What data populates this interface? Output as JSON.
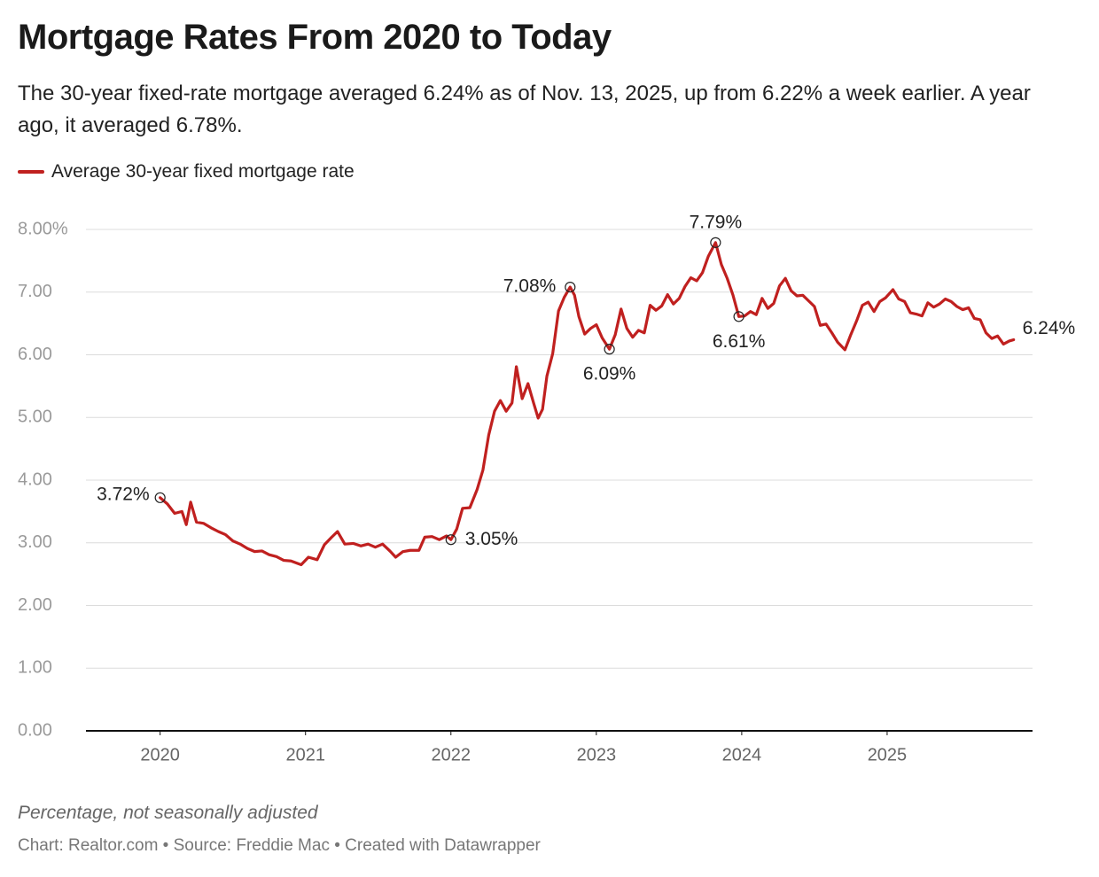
{
  "chart_data": {
    "type": "line",
    "title": "Mortgage Rates From 2020 to Today",
    "subtitle": "The 30-year fixed-rate mortgage averaged 6.24% as of Nov. 13, 2025, up from 6.22% a week earlier. A year ago, it averaged 6.78%.",
    "note": "Percentage, not seasonally adjusted",
    "credit": "Chart: Realtor.com • Source: Freddie Mac • Created with Datawrapper",
    "grid": true,
    "legend": "top-left",
    "xlim": [
      2019.49,
      2026.0
    ],
    "xticks": [
      2020,
      2021,
      2022,
      2023,
      2024,
      2025
    ],
    "ylim": [
      0,
      8
    ],
    "yticks": [
      {
        "value": 0,
        "label": "0.00"
      },
      {
        "value": 1,
        "label": "1.00"
      },
      {
        "value": 2,
        "label": "2.00"
      },
      {
        "value": 3,
        "label": "3.00"
      },
      {
        "value": 4,
        "label": "4.00"
      },
      {
        "value": 5,
        "label": "5.00"
      },
      {
        "value": 6,
        "label": "6.00"
      },
      {
        "value": 7,
        "label": "7.00"
      },
      {
        "value": 8,
        "label": "8.00%"
      }
    ],
    "x": [
      2020.0,
      2020.05,
      2020.1,
      2020.15,
      2020.18,
      2020.21,
      2020.25,
      2020.3,
      2020.35,
      2020.4,
      2020.45,
      2020.5,
      2020.55,
      2020.6,
      2020.65,
      2020.7,
      2020.75,
      2020.8,
      2020.85,
      2020.9,
      2020.97,
      2021.02,
      2021.08,
      2021.13,
      2021.18,
      2021.22,
      2021.27,
      2021.33,
      2021.38,
      2021.43,
      2021.48,
      2021.53,
      2021.58,
      2021.62,
      2021.67,
      2021.72,
      2021.78,
      2021.82,
      2021.87,
      2021.92,
      2021.97,
      2022.0,
      2022.04,
      2022.08,
      2022.13,
      2022.18,
      2022.22,
      2022.26,
      2022.3,
      2022.34,
      2022.38,
      2022.42,
      2022.45,
      2022.49,
      2022.53,
      2022.57,
      2022.6,
      2022.63,
      2022.66,
      2022.7,
      2022.74,
      2022.78,
      2022.82,
      2022.85,
      2022.88,
      2022.92,
      2022.96,
      2023.0,
      2023.04,
      2023.09,
      2023.13,
      2023.17,
      2023.21,
      2023.25,
      2023.29,
      2023.33,
      2023.37,
      2023.41,
      2023.45,
      2023.49,
      2023.53,
      2023.57,
      2023.61,
      2023.65,
      2023.69,
      2023.73,
      2023.77,
      2023.82,
      2023.86,
      2023.9,
      2023.94,
      2023.98,
      2024.02,
      2024.06,
      2024.1,
      2024.14,
      2024.18,
      2024.22,
      2024.26,
      2024.3,
      2024.34,
      2024.38,
      2024.42,
      2024.46,
      2024.5,
      2024.54,
      2024.58,
      2024.62,
      2024.66,
      2024.71,
      2024.75,
      2024.79,
      2024.83,
      2024.87,
      2024.91,
      2024.95,
      2024.99,
      2025.04,
      2025.08,
      2025.12,
      2025.16,
      2025.2,
      2025.24,
      2025.28,
      2025.32,
      2025.36,
      2025.4,
      2025.44,
      2025.48,
      2025.52,
      2025.56,
      2025.6,
      2025.64,
      2025.68,
      2025.72,
      2025.76,
      2025.8,
      2025.84,
      2025.87
    ],
    "series": [
      {
        "name": "Average 30-year fixed mortgage rate",
        "color": "#c0201f",
        "values": [
          3.72,
          3.62,
          3.47,
          3.5,
          3.29,
          3.65,
          3.33,
          3.31,
          3.24,
          3.18,
          3.13,
          3.03,
          2.98,
          2.91,
          2.86,
          2.87,
          2.81,
          2.78,
          2.72,
          2.71,
          2.65,
          2.77,
          2.73,
          2.97,
          3.09,
          3.18,
          2.98,
          2.99,
          2.95,
          2.98,
          2.93,
          2.98,
          2.87,
          2.77,
          2.86,
          2.88,
          2.88,
          3.09,
          3.1,
          3.05,
          3.11,
          3.05,
          3.22,
          3.55,
          3.56,
          3.85,
          4.16,
          4.72,
          5.1,
          5.27,
          5.1,
          5.23,
          5.81,
          5.3,
          5.54,
          5.22,
          4.99,
          5.13,
          5.66,
          6.02,
          6.7,
          6.92,
          7.08,
          6.95,
          6.61,
          6.33,
          6.42,
          6.48,
          6.27,
          6.09,
          6.32,
          6.73,
          6.42,
          6.28,
          6.39,
          6.35,
          6.79,
          6.71,
          6.78,
          6.96,
          6.81,
          6.9,
          7.09,
          7.23,
          7.18,
          7.31,
          7.57,
          7.79,
          7.44,
          7.22,
          6.95,
          6.61,
          6.62,
          6.69,
          6.64,
          6.9,
          6.74,
          6.82,
          7.1,
          7.22,
          7.02,
          6.94,
          6.95,
          6.86,
          6.77,
          6.47,
          6.49,
          6.35,
          6.2,
          6.08,
          6.32,
          6.54,
          6.79,
          6.84,
          6.69,
          6.85,
          6.91,
          7.04,
          6.89,
          6.85,
          6.67,
          6.65,
          6.62,
          6.83,
          6.76,
          6.81,
          6.89,
          6.85,
          6.77,
          6.72,
          6.75,
          6.58,
          6.56,
          6.35,
          6.26,
          6.3,
          6.17,
          6.22,
          6.24
        ],
        "value_labels": [
          "3.72%",
          null,
          null,
          null,
          null,
          null,
          null,
          null,
          null,
          null,
          null,
          null,
          null,
          null,
          null,
          null,
          null,
          null,
          null,
          null,
          null,
          null,
          null,
          null,
          null,
          null,
          null,
          null,
          null,
          null,
          null,
          null,
          null,
          null,
          null,
          null,
          null,
          null,
          null,
          null,
          null,
          "3.05%",
          null,
          null,
          null,
          null,
          null,
          null,
          null,
          null,
          null,
          null,
          null,
          null,
          null,
          null,
          null,
          null,
          null,
          null,
          null,
          null,
          "7.08%",
          null,
          null,
          null,
          null,
          null,
          null,
          "6.09%",
          null,
          null,
          null,
          null,
          null,
          null,
          null,
          null,
          null,
          null,
          null,
          null,
          null,
          null,
          null,
          null,
          null,
          "7.79%",
          null,
          null,
          null,
          "6.61%",
          null,
          null,
          null,
          null,
          null,
          null,
          null,
          null,
          null,
          null,
          null,
          null,
          null,
          null,
          null,
          null,
          null,
          null,
          null,
          null,
          null,
          null,
          null,
          null,
          null,
          null,
          null,
          null,
          null,
          null,
          null,
          null,
          null,
          null,
          null,
          null,
          null,
          null,
          null,
          null,
          null,
          null,
          null,
          null,
          null,
          null,
          "6.24%"
        ]
      }
    ]
  }
}
